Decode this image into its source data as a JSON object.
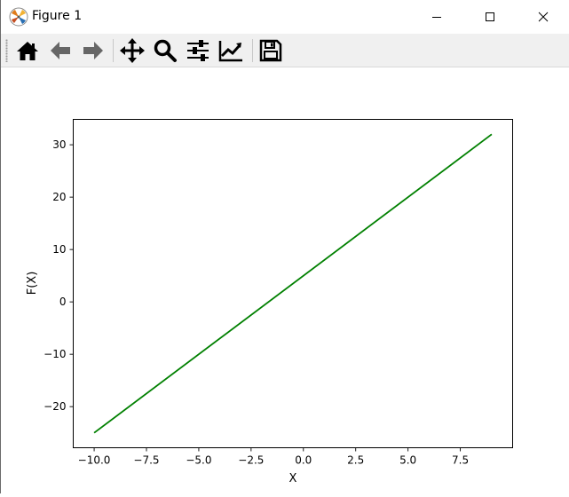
{
  "window": {
    "title": "Figure 1",
    "controls": {
      "minimize": "minimize-icon",
      "maximize": "maximize-icon",
      "close": "close-icon"
    }
  },
  "toolbar": {
    "buttons": [
      {
        "name": "home-button",
        "icon": "home-icon"
      },
      {
        "name": "back-button",
        "icon": "arrow-left-icon"
      },
      {
        "name": "forward-button",
        "icon": "arrow-right-icon"
      },
      {
        "name": "pan-button",
        "icon": "move-arrows-icon"
      },
      {
        "name": "zoom-button",
        "icon": "magnifier-icon"
      },
      {
        "name": "configure-subplots-button",
        "icon": "sliders-icon"
      },
      {
        "name": "edit-axis-button",
        "icon": "chart-line-icon"
      },
      {
        "name": "save-button",
        "icon": "floppy-disk-icon"
      }
    ]
  },
  "chart_data": {
    "type": "line",
    "title": "",
    "xlabel": "X",
    "ylabel": "F(X)",
    "xlim": [
      -11,
      10
    ],
    "ylim": [
      -27.85,
      34.85
    ],
    "xticks": [
      -10.0,
      -7.5,
      -5.0,
      -2.5,
      0.0,
      2.5,
      5.0,
      7.5
    ],
    "xtick_labels": [
      "−10.0",
      "−7.5",
      "−5.0",
      "−2.5",
      "0.0",
      "2.5",
      "5.0",
      "7.5"
    ],
    "yticks": [
      -20,
      -10,
      0,
      10,
      20,
      30
    ],
    "ytick_labels": [
      "−20",
      "−10",
      "0",
      "10",
      "20",
      "30"
    ],
    "grid": false,
    "legend": "none",
    "series": [
      {
        "color": "#008000",
        "x": [
          -10,
          9
        ],
        "y": [
          -25,
          32
        ]
      }
    ]
  }
}
